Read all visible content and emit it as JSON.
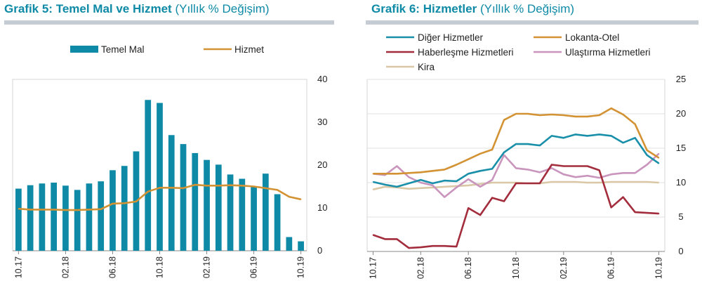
{
  "left": {
    "title_main": "Grafik 5: Temel Mal ve Hizmet",
    "title_sub": " (Yıllık % Değişim)"
  },
  "right": {
    "title_main": "Grafik 6: Hizmetler",
    "title_sub": " (Yıllık % Değişim)"
  },
  "colors": {
    "title": "#0e8aa6",
    "bar": "#0e8aa6",
    "hizmet": "#d39233",
    "diger": "#1a8fa9",
    "lokanta": "#d39233",
    "haberlesme": "#a32d3c",
    "ulastirma": "#c995bd",
    "kira": "#d9c7a6"
  },
  "chart_data": [
    {
      "type": "bar",
      "combo": "bar + line",
      "x": [
        "10.17",
        "11.17",
        "12.17",
        "01.18",
        "02.18",
        "03.18",
        "04.18",
        "05.18",
        "06.18",
        "07.18",
        "08.18",
        "09.18",
        "10.18",
        "11.18",
        "12.18",
        "01.19",
        "02.19",
        "03.19",
        "04.19",
        "05.19",
        "06.19",
        "07.19",
        "08.19",
        "09.19",
        "10.19"
      ],
      "x_tick_labels": [
        "10.17",
        "02.18",
        "06.18",
        "10.18",
        "02.19",
        "06.19",
        "10.19"
      ],
      "series": [
        {
          "name": "Temel Mal",
          "type": "bar",
          "values": [
            14.5,
            15.3,
            15.7,
            15.9,
            15.2,
            14.2,
            15.7,
            16.2,
            18.8,
            19.8,
            23.2,
            35.2,
            34.5,
            27.0,
            24.9,
            22.8,
            21.2,
            20.1,
            17.8,
            16.8,
            15.0,
            18.0,
            13.2,
            3.2,
            2.2
          ]
        },
        {
          "name": "Hizmet",
          "type": "line",
          "values": [
            9.8,
            9.6,
            9.6,
            9.6,
            9.5,
            9.5,
            9.6,
            9.7,
            11.0,
            11.1,
            11.5,
            13.8,
            14.7,
            14.7,
            14.6,
            15.4,
            15.2,
            15.2,
            15.3,
            15.2,
            15.0,
            14.6,
            14.2,
            12.6,
            12.0
          ]
        }
      ],
      "ylim": [
        0,
        40
      ],
      "y_ticks": [
        0,
        10,
        20,
        30,
        40
      ],
      "y_axis_side": "right",
      "legend_position": "top",
      "grid": false
    },
    {
      "type": "line",
      "x": [
        "10.17",
        "11.17",
        "12.17",
        "01.18",
        "02.18",
        "03.18",
        "04.18",
        "05.18",
        "06.18",
        "07.18",
        "08.18",
        "09.18",
        "10.18",
        "11.18",
        "12.18",
        "01.19",
        "02.19",
        "03.19",
        "04.19",
        "05.19",
        "06.19",
        "07.19",
        "08.19",
        "09.19",
        "10.19"
      ],
      "x_tick_labels": [
        "10.17",
        "02.18",
        "06.18",
        "10.18",
        "02.19",
        "06.19",
        "10.19"
      ],
      "series": [
        {
          "name": "Diğer Hizmetler",
          "values": [
            10.1,
            9.7,
            9.4,
            9.9,
            10.4,
            9.9,
            10.3,
            10.2,
            11.3,
            11.7,
            12.0,
            14.4,
            15.6,
            15.6,
            15.4,
            16.8,
            16.5,
            17.0,
            16.8,
            17.0,
            16.8,
            15.8,
            16.5,
            14.0,
            12.8
          ]
        },
        {
          "name": "Lokanta-Otel",
          "values": [
            11.3,
            11.3,
            11.3,
            11.4,
            11.5,
            11.7,
            11.9,
            12.6,
            13.4,
            14.2,
            14.8,
            19.1,
            20.0,
            20.0,
            19.8,
            19.9,
            19.8,
            19.6,
            19.6,
            19.8,
            20.8,
            19.9,
            18.5,
            14.7,
            13.6
          ]
        },
        {
          "name": "Haberleşme Hizmetleri",
          "values": [
            2.4,
            1.8,
            1.8,
            0.5,
            0.6,
            0.8,
            0.8,
            0.7,
            6.3,
            5.3,
            7.8,
            7.3,
            9.9,
            9.9,
            9.9,
            12.6,
            12.4,
            12.4,
            12.4,
            11.8,
            6.4,
            7.9,
            5.7,
            5.6,
            5.5
          ]
        },
        {
          "name": "Ulaştırma Hizmetleri",
          "values": [
            11.3,
            11.1,
            12.4,
            10.8,
            10.0,
            9.6,
            7.9,
            9.3,
            10.5,
            9.4,
            10.4,
            14.0,
            12.1,
            11.9,
            11.5,
            12.1,
            11.2,
            10.8,
            11.0,
            10.7,
            11.2,
            11.4,
            11.4,
            12.6,
            14.2
          ]
        },
        {
          "name": "Kira",
          "values": [
            9.0,
            9.4,
            9.3,
            9.1,
            9.2,
            9.3,
            9.4,
            9.5,
            9.6,
            9.8,
            10.0,
            10.0,
            10.0,
            9.9,
            9.9,
            10.1,
            10.1,
            10.1,
            10.0,
            10.0,
            10.1,
            10.1,
            10.1,
            10.1,
            10.0
          ]
        }
      ],
      "ylim": [
        0,
        25
      ],
      "y_ticks": [
        0,
        5,
        10,
        15,
        20,
        25
      ],
      "y_axis_side": "right",
      "legend_position": "top",
      "grid": true
    }
  ]
}
